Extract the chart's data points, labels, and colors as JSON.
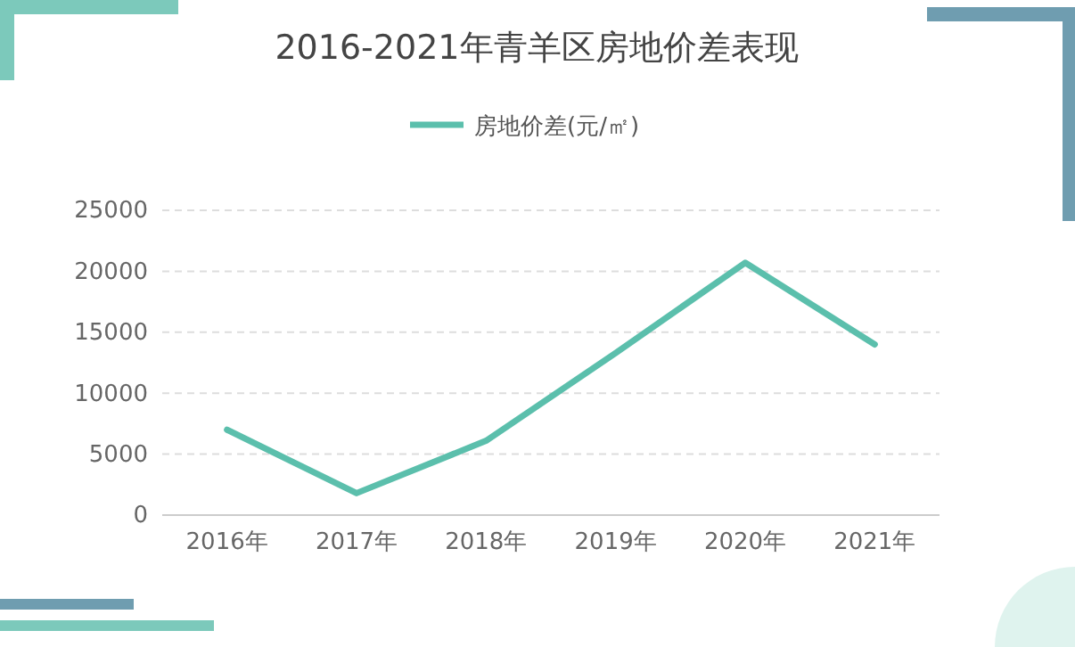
{
  "chart_data": {
    "type": "line",
    "title": "2016-2021年青羊区房地价差表现",
    "categories": [
      "2016年",
      "2017年",
      "2018年",
      "2019年",
      "2020年",
      "2021年"
    ],
    "series": [
      {
        "name": "房地价差(元/㎡)",
        "color": "#5bbfac",
        "values": [
          7000,
          1800,
          6100,
          13300,
          20700,
          14000
        ]
      }
    ],
    "ylim": [
      0,
      25000
    ],
    "yticks": [
      0,
      5000,
      10000,
      15000,
      20000,
      25000
    ],
    "grid": "y",
    "legend": "top",
    "marker": "none",
    "line_style": "solid"
  }
}
